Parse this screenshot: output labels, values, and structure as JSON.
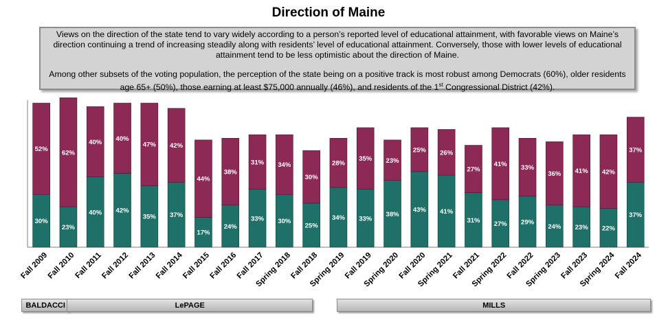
{
  "title": "Direction of Maine",
  "summary": {
    "paragraph1": "Views on the direction of the state tend to vary widely according to a person’s reported level of educational attainment, with favorable views on Maine’s direction continuing a trend of increasing steadily along with residents’ level of educational attainment. Conversely, those with lower levels of educational attainment tend to be less optimistic about the direction of Maine.",
    "paragraph2_before": "Among other subsets of the voting population, the perception of the state being on a positive track is most robust among Democrats (60%), older residents age 65+ (50%), those earning at least $75,000 annually (46%), and residents of the 1",
    "paragraph2_sup": "st",
    "paragraph2_after": " Congressional District (42%)."
  },
  "eras": [
    {
      "label": "BALDACCI",
      "first": 0,
      "last": 1
    },
    {
      "label": "LePAGE",
      "first": 1,
      "last": 10
    },
    {
      "label": "MILLS",
      "first": 11,
      "last": 22
    }
  ],
  "colors": {
    "positive": "#1e7068",
    "negative": "#8c2a55"
  },
  "chart_data": {
    "type": "bar",
    "stacked": true,
    "categories": [
      "Fall 2009",
      "Fall 2010",
      "Fall 2011",
      "Fall 2012",
      "Fall 2013",
      "Fall 2014",
      "Fall 2015",
      "Fall 2016",
      "Fall 2017",
      "Spring 2018",
      "Fall 2018",
      "Spring 2019",
      "Fall 2019",
      "Spring 2020",
      "Fall 2020",
      "Spring 2021",
      "Fall 2021",
      "Spring 2022",
      "Fall 2022",
      "Spring 2023",
      "Fall 2023",
      "Spring 2024",
      "Fall 2024"
    ],
    "series": [
      {
        "values": [
          30,
          23,
          40,
          42,
          35,
          37,
          17,
          24,
          33,
          30,
          25,
          34,
          33,
          38,
          43,
          41,
          31,
          27,
          29,
          24,
          23,
          22,
          37
        ],
        "labels": [
          "30%",
          "23%",
          "40%",
          "42%",
          "35%",
          "37%",
          "17%",
          "24%",
          "33%",
          "30%",
          "25%",
          "34%",
          "33%",
          "38%",
          "43%",
          "41%",
          "31%",
          "27%",
          "29%",
          "24%",
          "23%",
          "22%",
          "37%"
        ]
      },
      {
        "values": [
          52,
          62,
          40,
          40,
          47,
          42,
          44,
          38,
          31,
          34,
          30,
          28,
          35,
          23,
          25,
          26,
          27,
          41,
          33,
          36,
          41,
          42,
          37
        ],
        "labels": [
          "52%",
          "62%",
          "40%",
          "40%",
          "47%",
          "42%",
          "44%",
          "38%",
          "31%",
          "34%",
          "30%",
          "28%",
          "35%",
          "23%",
          "25%",
          "26%",
          "27%",
          "41%",
          "33%",
          "36%",
          "41%",
          "42%",
          "37%"
        ]
      }
    ]
  }
}
